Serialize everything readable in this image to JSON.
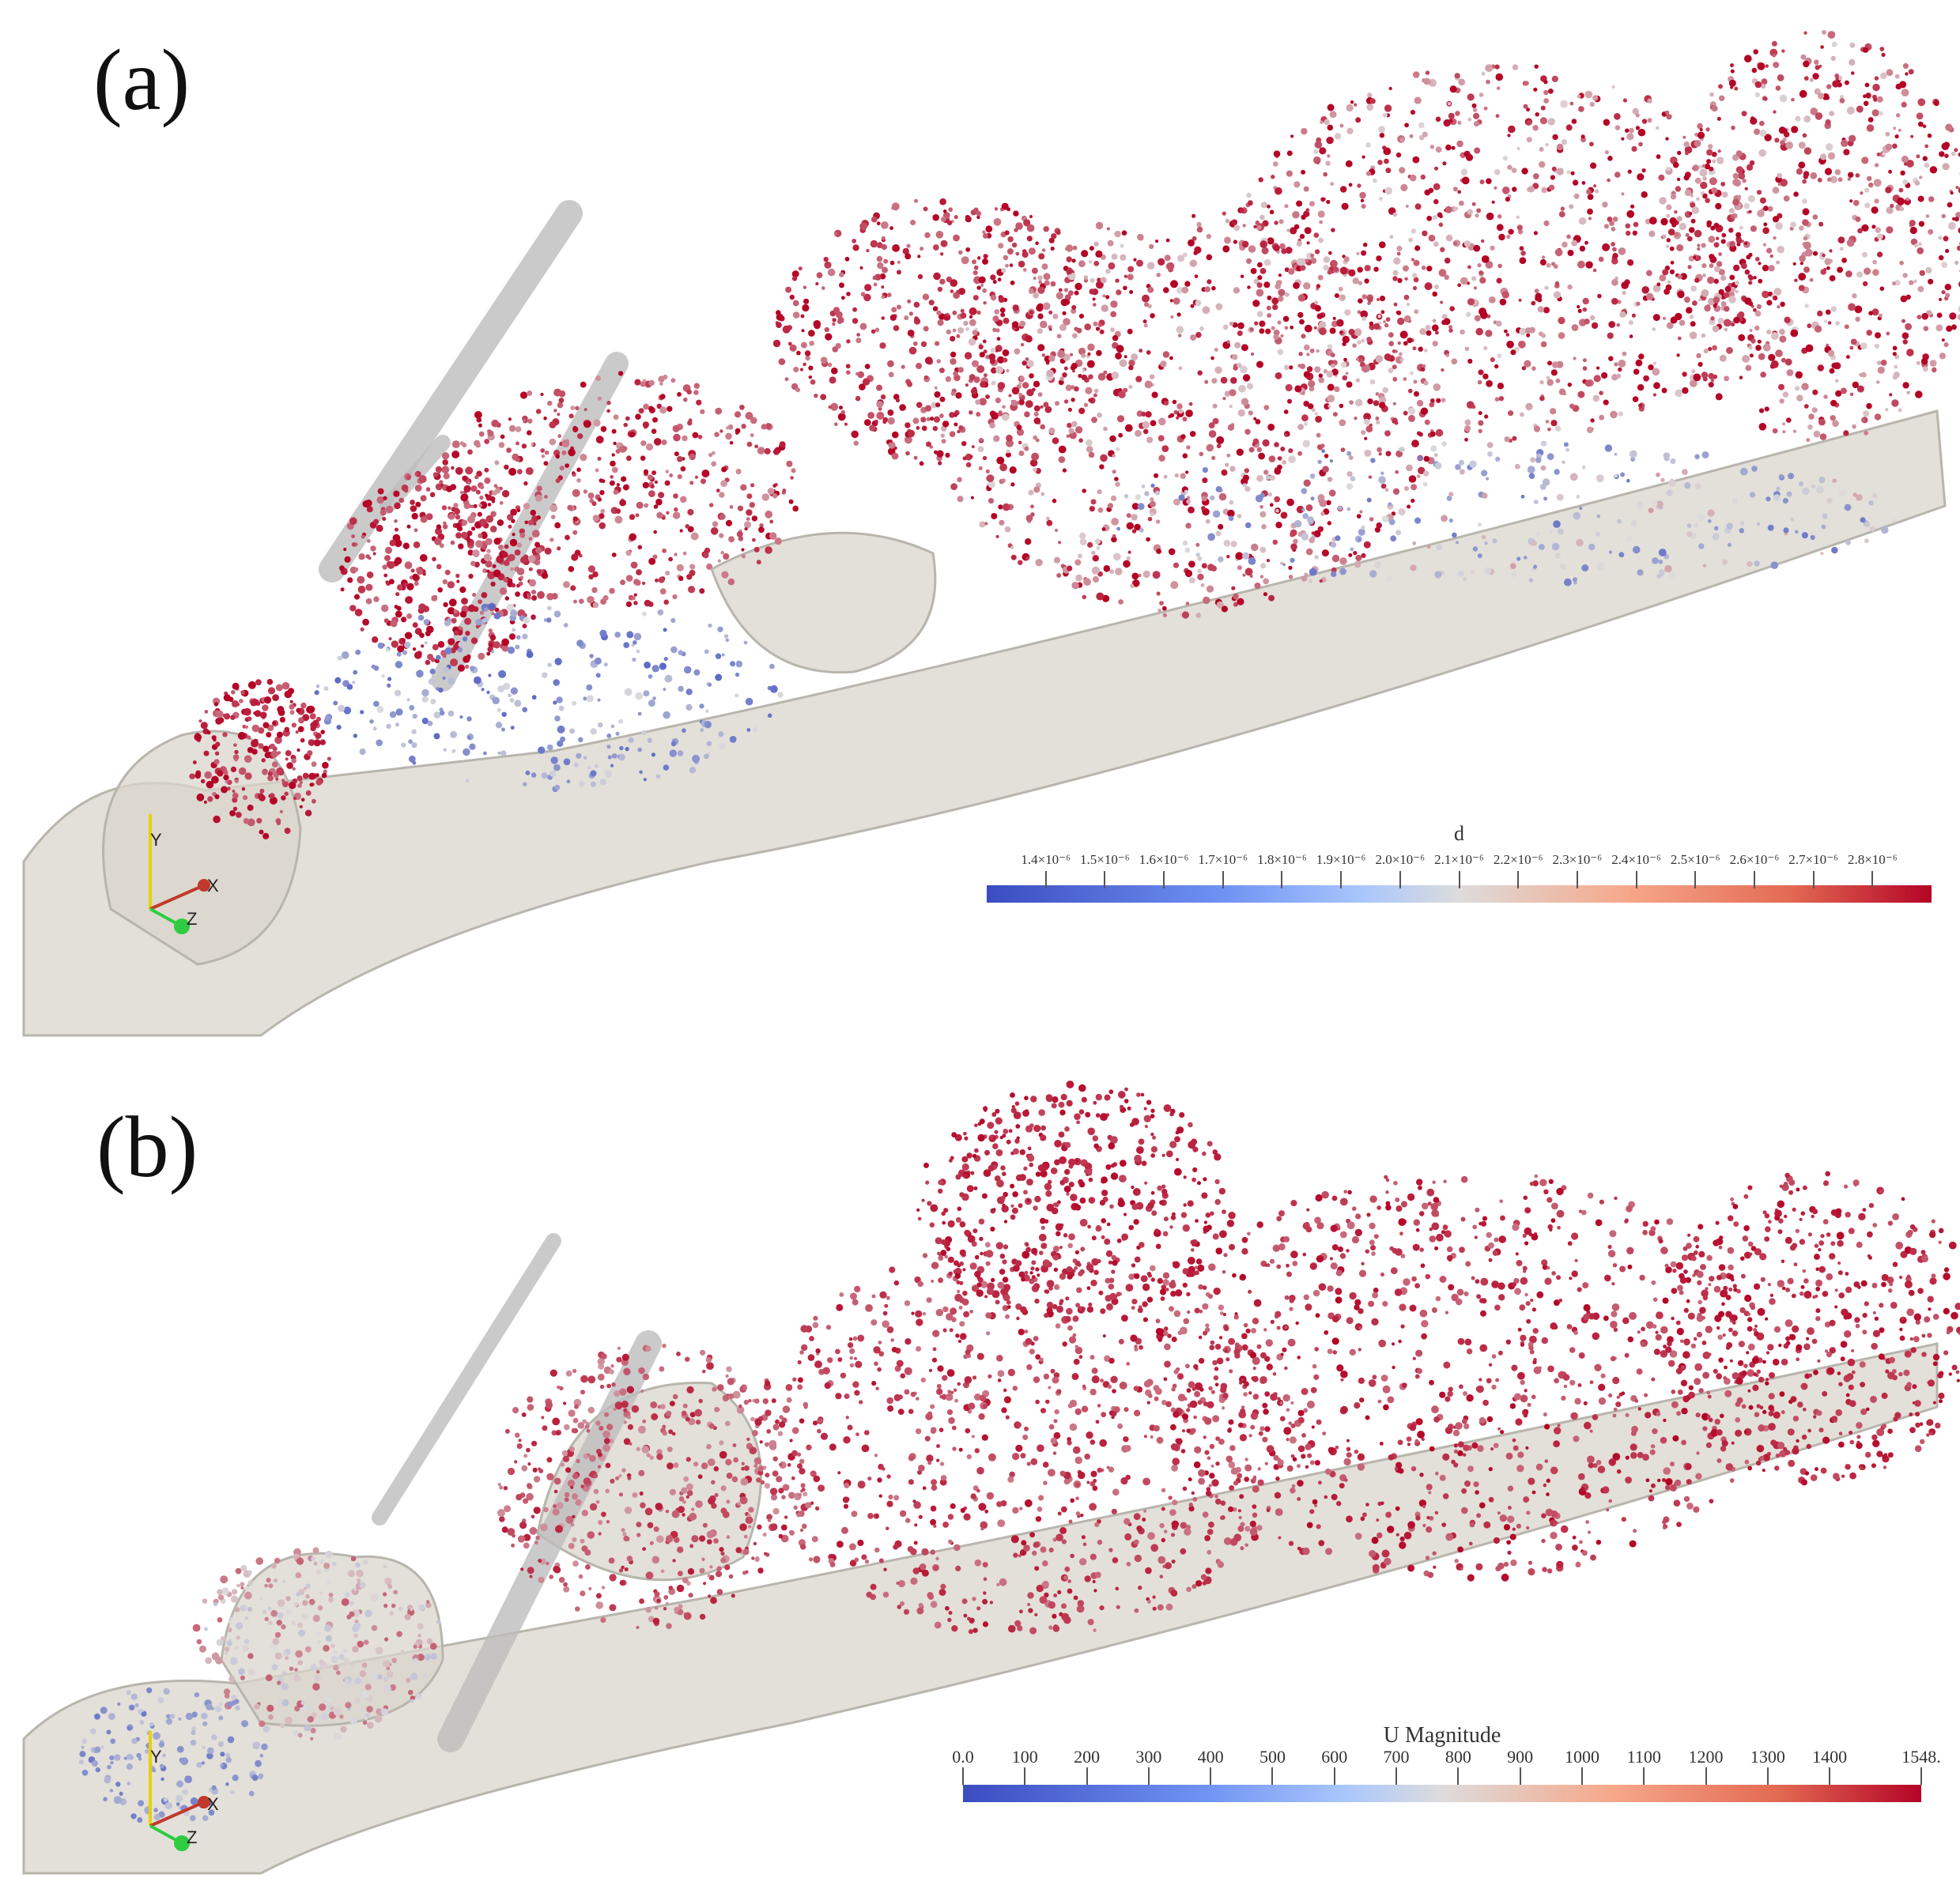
{
  "panels": [
    {
      "label": "(a)",
      "colorbar": {
        "title": "d",
        "ticks": [
          "1.4×10⁻⁶",
          "1.5×10⁻⁶",
          "1.6×10⁻⁶",
          "1.7×10⁻⁶",
          "1.8×10⁻⁶",
          "1.9×10⁻⁶",
          "2.0×10⁻⁶",
          "2.1×10⁻⁶",
          "2.2×10⁻⁶",
          "2.3×10⁻⁶",
          "2.4×10⁻⁶",
          "2.5×10⁻⁶",
          "2.6×10⁻⁶",
          "2.7×10⁻⁶",
          "2.8×10⁻⁶"
        ],
        "colormap": [
          "#3b4cc0",
          "#dddcdc",
          "#b40426"
        ]
      },
      "axes": {
        "y": "Y",
        "x": "X",
        "z": "Z"
      }
    },
    {
      "label": "(b)",
      "colorbar": {
        "title": "U Magnitude",
        "ticks": [
          "0.0",
          "100",
          "200",
          "300",
          "400",
          "500",
          "600",
          "700",
          "800",
          "900",
          "1000",
          "1100",
          "1200",
          "1300",
          "1400",
          "1548."
        ],
        "tick_values": [
          0,
          100,
          200,
          300,
          400,
          500,
          600,
          700,
          800,
          900,
          1000,
          1100,
          1200,
          1300,
          1400,
          1548
        ],
        "range": [
          0,
          1548
        ],
        "colormap": [
          "#3b4cc0",
          "#dddcdc",
          "#b40426"
        ]
      },
      "axes": {
        "y": "Y",
        "x": "X",
        "z": "Z"
      }
    }
  ]
}
